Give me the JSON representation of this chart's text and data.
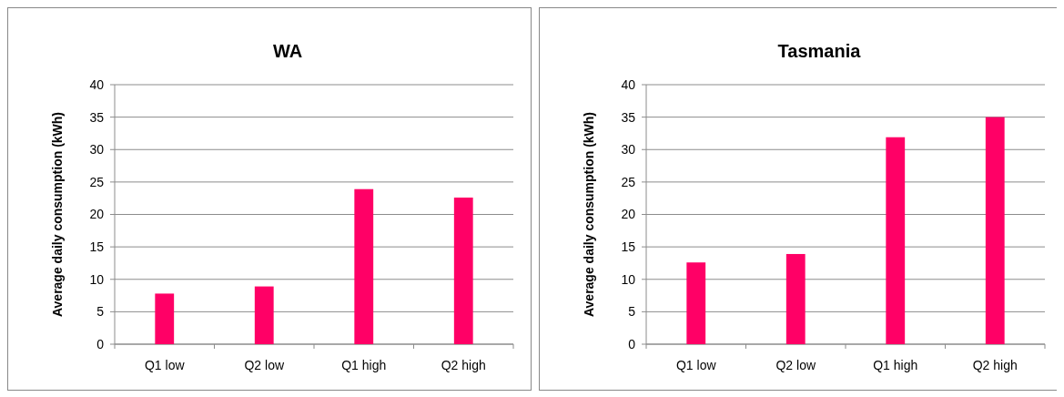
{
  "chart_data": [
    {
      "type": "bar",
      "title": "WA",
      "ylabel": "Average daily consumption  (kWh)",
      "categories": [
        "Q1 low",
        "Q2 low",
        "Q1 high",
        "Q2 high"
      ],
      "values": [
        7.8,
        8.9,
        23.9,
        22.6
      ],
      "color": "#ff0066",
      "ylim": [
        0,
        40
      ],
      "yticks": [
        0,
        5,
        10,
        15,
        20,
        25,
        30,
        35,
        40
      ],
      "grid": "y"
    },
    {
      "type": "bar",
      "title": "Tasmania",
      "ylabel": "Average daily consumption  (kWh)",
      "categories": [
        "Q1 low",
        "Q2 low",
        "Q1 high",
        "Q2 high"
      ],
      "values": [
        12.6,
        13.9,
        31.9,
        35.0
      ],
      "color": "#ff0066",
      "ylim": [
        0,
        40
      ],
      "yticks": [
        0,
        5,
        10,
        15,
        20,
        25,
        30,
        35,
        40
      ],
      "grid": "y"
    }
  ]
}
